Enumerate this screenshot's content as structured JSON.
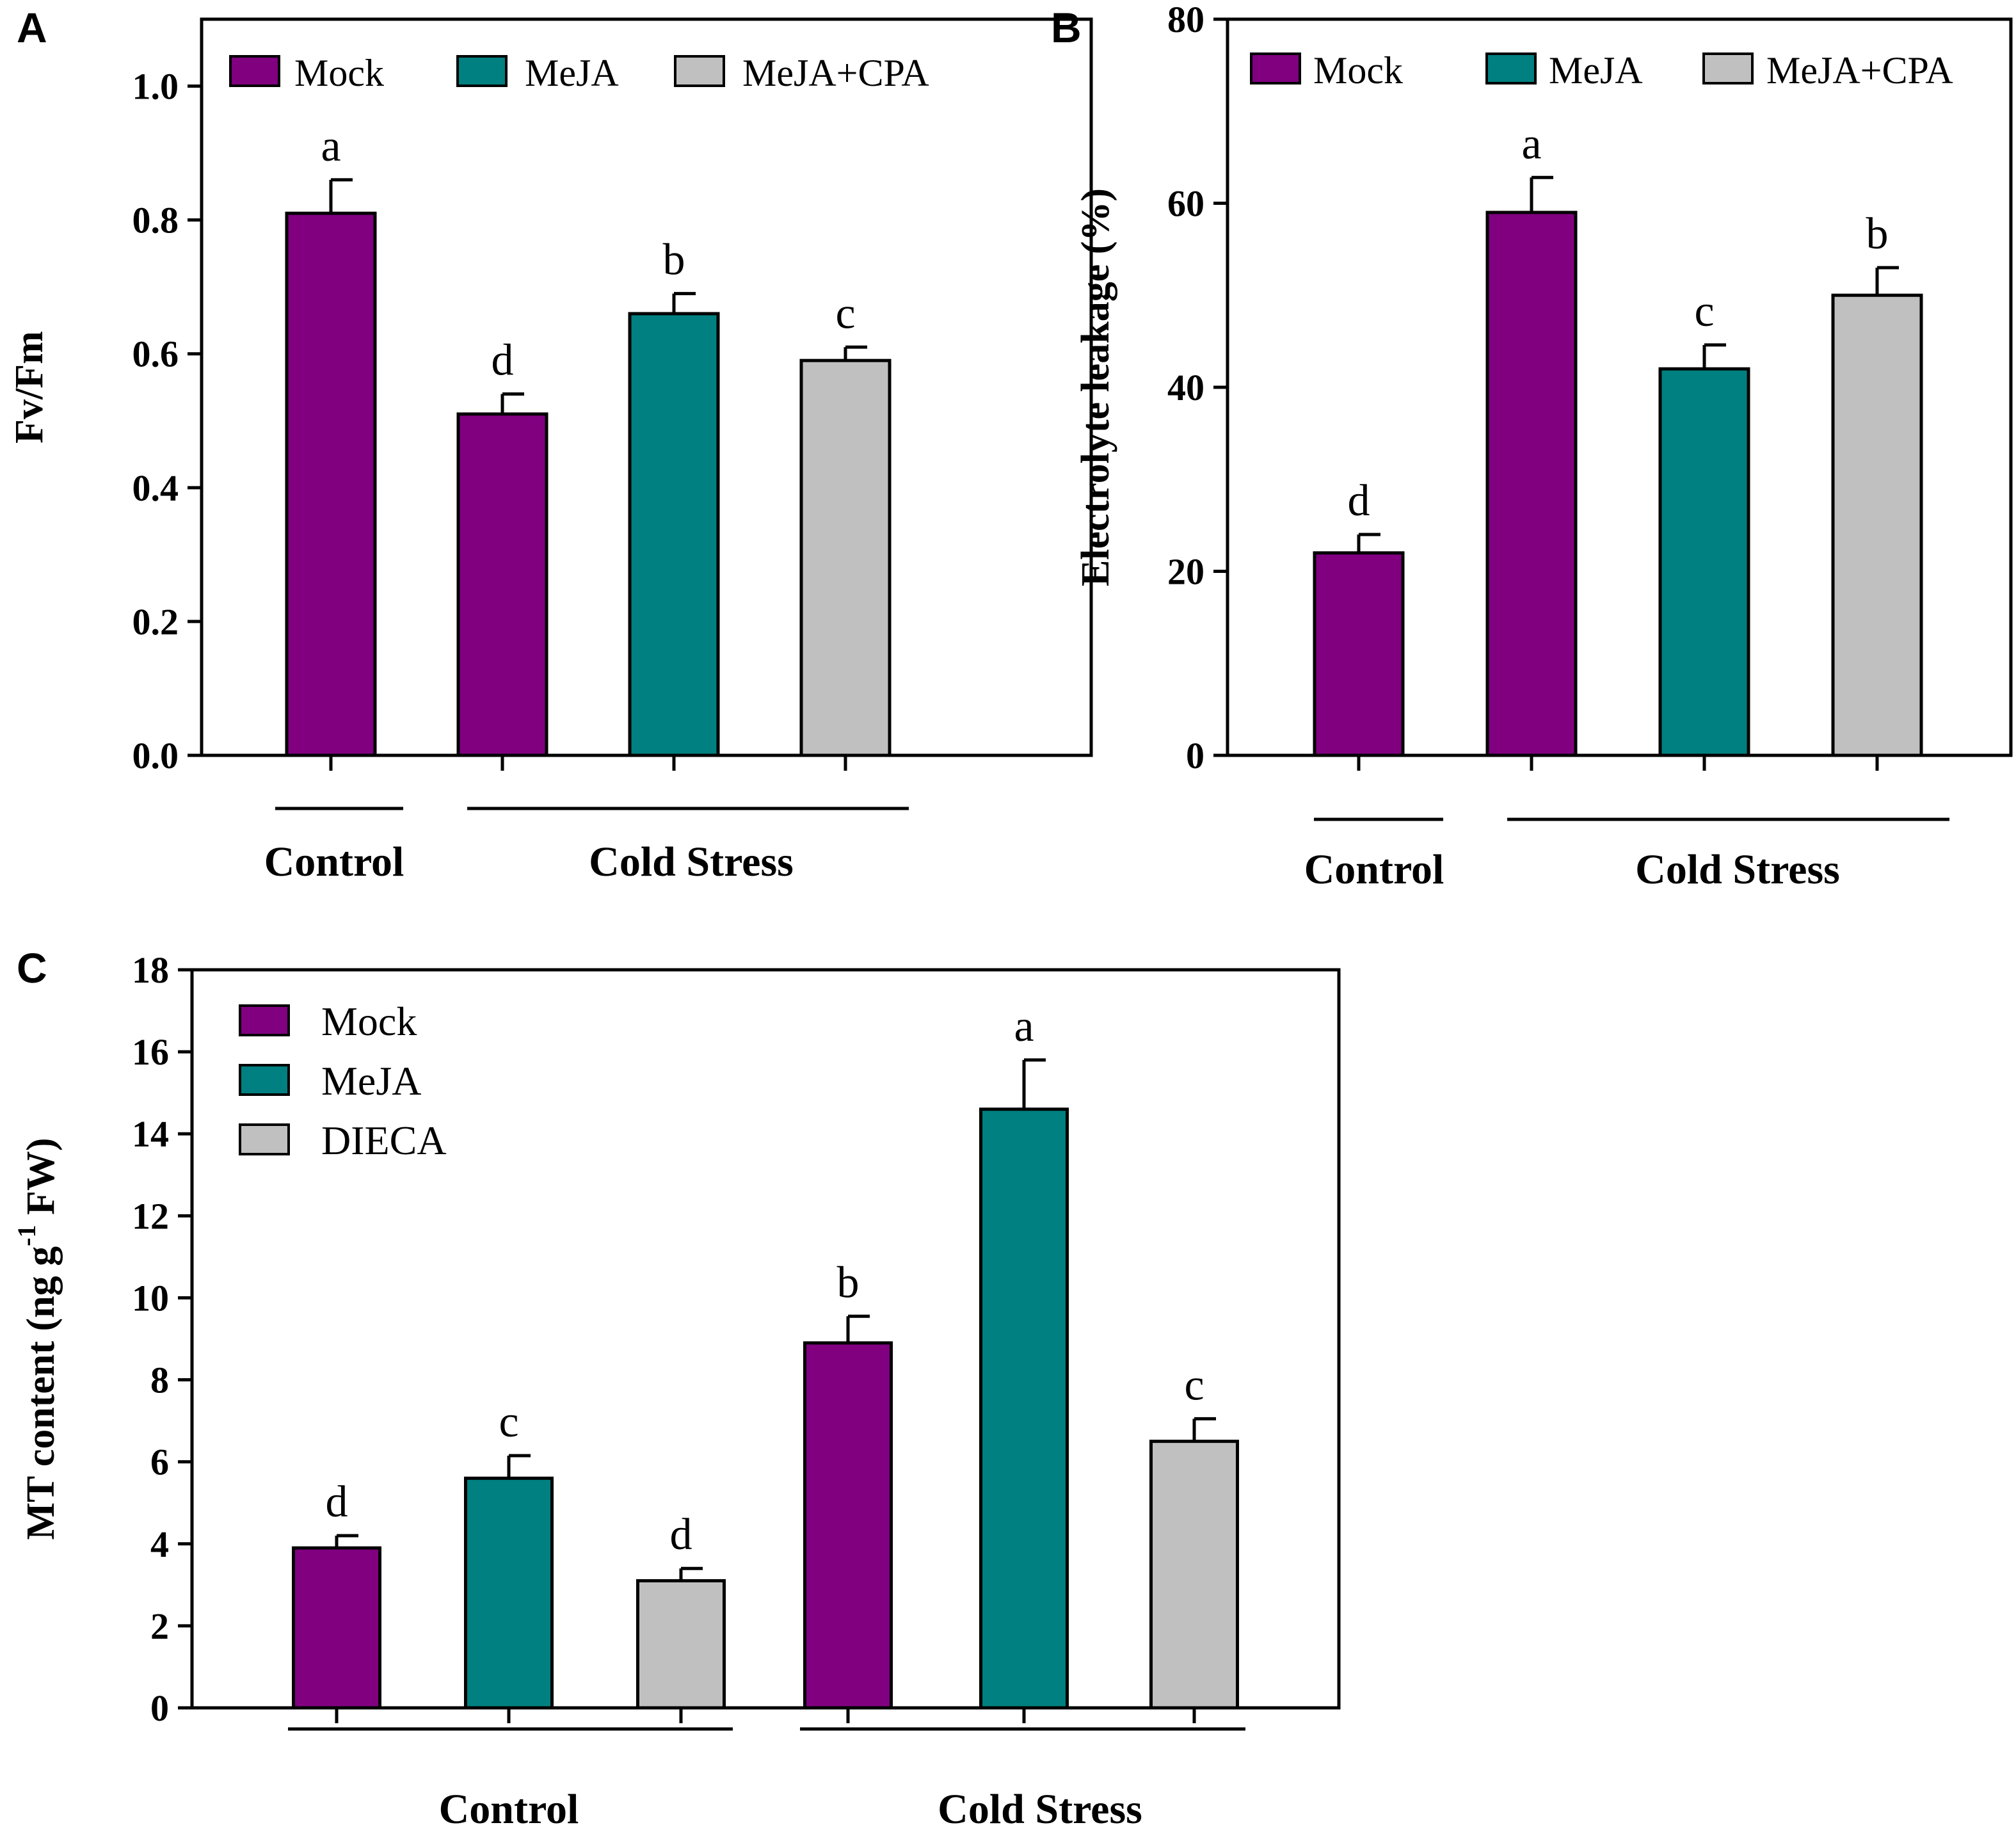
{
  "colors": {
    "mock": "#800080",
    "meja": "#008080",
    "third": "#c0c0c0",
    "axis": "#000000"
  },
  "chart_data": [
    {
      "panel_label": "A",
      "type": "bar",
      "ylabel": "Fv/Fm",
      "ylim": [
        0,
        1.1
      ],
      "yticks": [
        "0.0",
        "0.2",
        "0.4",
        "0.6",
        "0.8",
        "1.0"
      ],
      "legend": [
        "Mock",
        "MeJA",
        "MeJA+CPA"
      ],
      "legend_position": "top",
      "group_labels": [
        "Control",
        "Cold Stress"
      ],
      "bars": [
        {
          "group": "Control",
          "series": "Mock",
          "value": 0.81,
          "error": 0.05,
          "letter": "a"
        },
        {
          "group": "Cold Stress",
          "series": "Mock",
          "value": 0.51,
          "error": 0.03,
          "letter": "d"
        },
        {
          "group": "Cold Stress",
          "series": "MeJA",
          "value": 0.66,
          "error": 0.03,
          "letter": "b"
        },
        {
          "group": "Cold Stress",
          "series": "MeJA+CPA",
          "value": 0.59,
          "error": 0.02,
          "letter": "c"
        }
      ]
    },
    {
      "panel_label": "B",
      "type": "bar",
      "ylabel": "Electrolyte leakage (%)",
      "ylim": [
        0,
        80
      ],
      "yticks": [
        "0",
        "20",
        "40",
        "60",
        "80"
      ],
      "legend": [
        "Mock",
        "MeJA",
        "MeJA+CPA"
      ],
      "legend_position": "top",
      "group_labels": [
        "Control",
        "Cold Stress"
      ],
      "bars": [
        {
          "group": "Control",
          "series": "Mock",
          "value": 22,
          "error": 2,
          "letter": "d"
        },
        {
          "group": "Cold Stress",
          "series": "Mock",
          "value": 59,
          "error": 3.8,
          "letter": "a"
        },
        {
          "group": "Cold Stress",
          "series": "MeJA",
          "value": 42,
          "error": 2.6,
          "letter": "c"
        },
        {
          "group": "Cold Stress",
          "series": "MeJA+CPA",
          "value": 50,
          "error": 3,
          "letter": "b"
        }
      ]
    },
    {
      "panel_label": "C",
      "type": "bar",
      "ylabel_prefix": "MT content  (ng g",
      "ylabel_sup": "-1",
      "ylabel_suffix": " FW)",
      "ylim": [
        0,
        18
      ],
      "yticks": [
        "0",
        "2",
        "4",
        "6",
        "8",
        "10",
        "12",
        "14",
        "16",
        "18"
      ],
      "legend": [
        "Mock",
        "MeJA",
        "DIECA"
      ],
      "legend_position": "top-left",
      "group_labels": [
        "Control",
        "Cold Stress"
      ],
      "bars": [
        {
          "group": "Control",
          "series": "Mock",
          "value": 3.9,
          "error": 0.3,
          "letter": "d"
        },
        {
          "group": "Control",
          "series": "MeJA",
          "value": 5.6,
          "error": 0.55,
          "letter": "c"
        },
        {
          "group": "Control",
          "series": "DIECA",
          "value": 3.1,
          "error": 0.3,
          "letter": "d"
        },
        {
          "group": "Cold Stress",
          "series": "Mock",
          "value": 8.9,
          "error": 0.65,
          "letter": "b"
        },
        {
          "group": "Cold Stress",
          "series": "MeJA",
          "value": 14.6,
          "error": 1.2,
          "letter": "a"
        },
        {
          "group": "Cold Stress",
          "series": "DIECA",
          "value": 6.5,
          "error": 0.55,
          "letter": "c"
        }
      ]
    }
  ]
}
